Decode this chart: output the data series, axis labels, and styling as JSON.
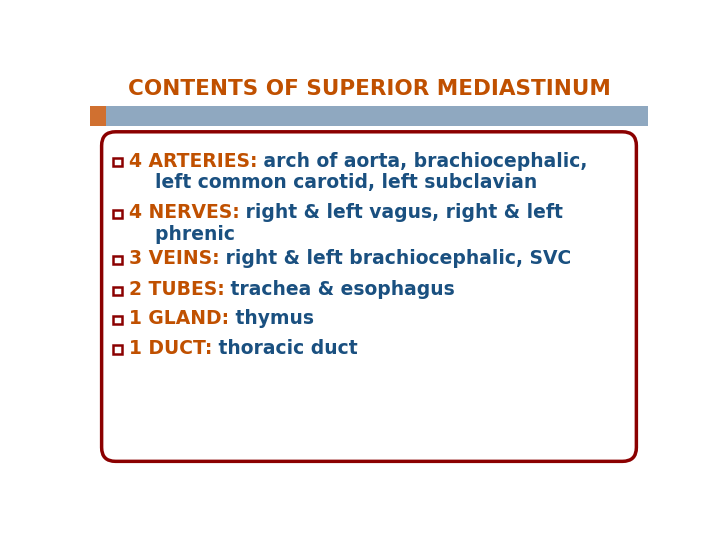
{
  "title": "CONTENTS OF SUPERIOR MEDIASTINUM",
  "title_color": "#C05000",
  "title_fontsize": 15.5,
  "background_color": "#FFFFFF",
  "header_bar_color": "#8FA8C0",
  "header_accent_color": "#D07030",
  "box_edge_color": "#8B0000",
  "box_face_color": "#FFFFFF",
  "bullet_color": "#8B0000",
  "label_color": "#C05000",
  "text_color": "#1A5080",
  "items": [
    {
      "label_part": "4 ARTERIES:",
      "text_part": " arch of aorta, brachiocephalic,",
      "continuation": "    left common carotid, left subclavian",
      "has_continuation": true
    },
    {
      "label_part": "4 NERVES:",
      "text_part": " right & left vagus, right & left",
      "continuation": "    phrenic",
      "has_continuation": true
    },
    {
      "label_part": "3 VEINS:",
      "text_part": " right & left brachiocephalic, SVC",
      "continuation": "",
      "has_continuation": false
    },
    {
      "label_part": "2 TUBES:",
      "text_part": " trachea & esophagus",
      "continuation": "",
      "has_continuation": false
    },
    {
      "label_part": "1 GLAND:",
      "text_part": " thymus",
      "continuation": "",
      "has_continuation": false
    },
    {
      "label_part": "1 DUCT:",
      "text_part": " thoracic duct",
      "continuation": "",
      "has_continuation": false
    }
  ]
}
